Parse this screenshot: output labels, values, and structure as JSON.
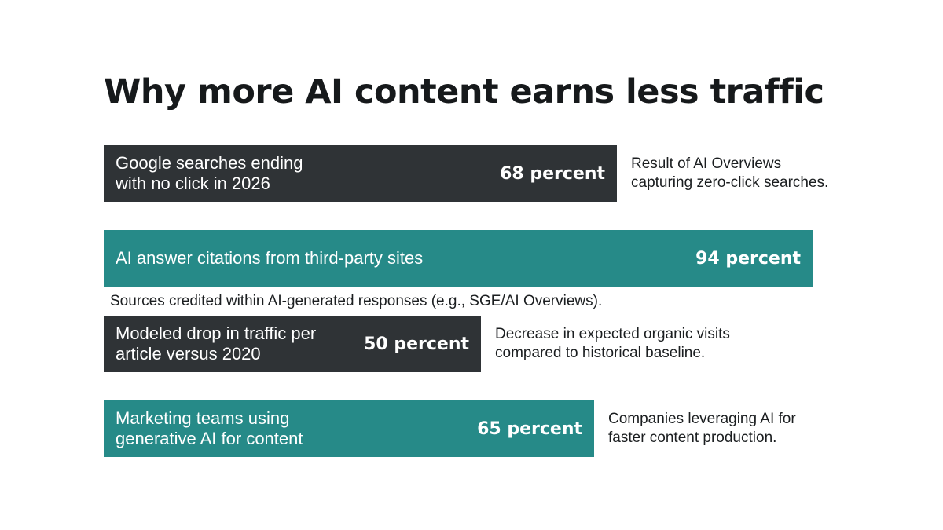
{
  "title": "Why more AI content earns less traffic",
  "colors": {
    "dark": "#2f3336",
    "teal": "#268a88",
    "text": "#1b1e20",
    "background": "#ffffff"
  },
  "chart_data": {
    "type": "bar",
    "orientation": "horizontal",
    "title": "Why more AI content earns less traffic",
    "xlabel": "",
    "ylabel": "",
    "xlim": [
      0,
      100
    ],
    "unit": "percent",
    "legend": "none",
    "grid": false,
    "categories": [
      "Google searches ending\nwith no click in 2026",
      "AI answer citations from third-party sites",
      "Modeled drop in traffic per\narticle versus 2020",
      "Marketing teams using\ngenerative AI for content"
    ],
    "values": [
      68,
      94,
      50,
      65
    ],
    "bars": [
      {
        "label": "Google searches ending\nwith no click in 2026",
        "value": 68,
        "value_label": "68 percent",
        "color": "dark",
        "annotation": "Result of AI Overviews\ncapturing zero-click searches.",
        "annotation_position": "right"
      },
      {
        "label": "AI answer citations from third-party sites",
        "value": 94,
        "value_label": "94 percent",
        "color": "teal",
        "annotation": "Sources credited within AI-generated responses (e.g., SGE/AI Overviews).",
        "annotation_position": "below"
      },
      {
        "label": "Modeled drop in traffic per\narticle versus 2020",
        "value": 50,
        "value_label": "50 percent",
        "color": "dark",
        "annotation": "Decrease in expected organic visits\ncompared to historical baseline.",
        "annotation_position": "right"
      },
      {
        "label": "Marketing teams using\ngenerative AI for content",
        "value": 65,
        "value_label": "65 percent",
        "color": "teal",
        "annotation": "Companies leveraging AI for\nfaster content production.",
        "annotation_position": "right"
      }
    ]
  }
}
